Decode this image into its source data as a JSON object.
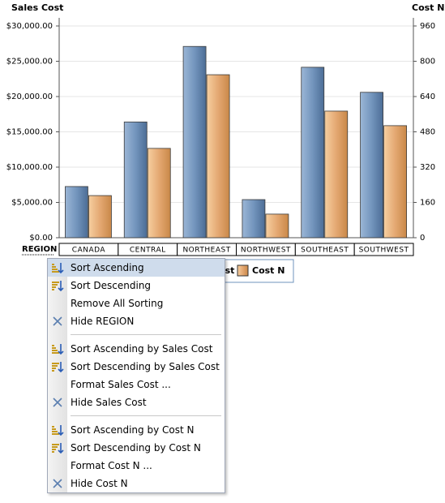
{
  "chart_data": {
    "type": "bar",
    "y_label": "Sales Cost",
    "y2_label": "Cost N",
    "x_label": "REGION",
    "categories": [
      "CANADA",
      "CENTRAL",
      "NORTHEAST",
      "NORTHWEST",
      "SOUTHEAST",
      "SOUTHWEST"
    ],
    "series": [
      {
        "name": "Sales Cost",
        "color": "#6f93bd",
        "values": [
          7250,
          16400,
          27100,
          5400,
          24150,
          20600
        ]
      },
      {
        "name": "Cost N",
        "color": "#e4a872",
        "axis": "y2",
        "values": [
          191,
          405,
          739,
          107,
          574,
          508
        ]
      }
    ],
    "ylim": [
      0,
      30000
    ],
    "yticks": [
      {
        "value": 0,
        "label": "$0.00"
      },
      {
        "value": 5000,
        "label": "$5,000.00"
      },
      {
        "value": 10000,
        "label": "$10,000.00"
      },
      {
        "value": 15000,
        "label": "$15,000.00"
      },
      {
        "value": 20000,
        "label": "$20,000.00"
      },
      {
        "value": 25000,
        "label": "$25,000.00"
      },
      {
        "value": 30000,
        "label": "$30,000.00"
      }
    ],
    "y2lim": [
      0,
      960
    ],
    "y2ticks": [
      0,
      160,
      320,
      480,
      640,
      800,
      960
    ],
    "grid": true
  },
  "context_menu": {
    "groups": [
      [
        "Sort Ascending",
        "Sort Descending",
        "Remove All Sorting",
        "Hide REGION"
      ],
      [
        "Sort Ascending by Sales Cost",
        "Sort Descending by Sales Cost",
        "Format Sales Cost ...",
        "Hide Sales Cost"
      ],
      [
        "Sort Ascending by Cost N",
        "Sort Descending by Cost N",
        "Format Cost N ...",
        "Hide Cost N"
      ]
    ]
  }
}
